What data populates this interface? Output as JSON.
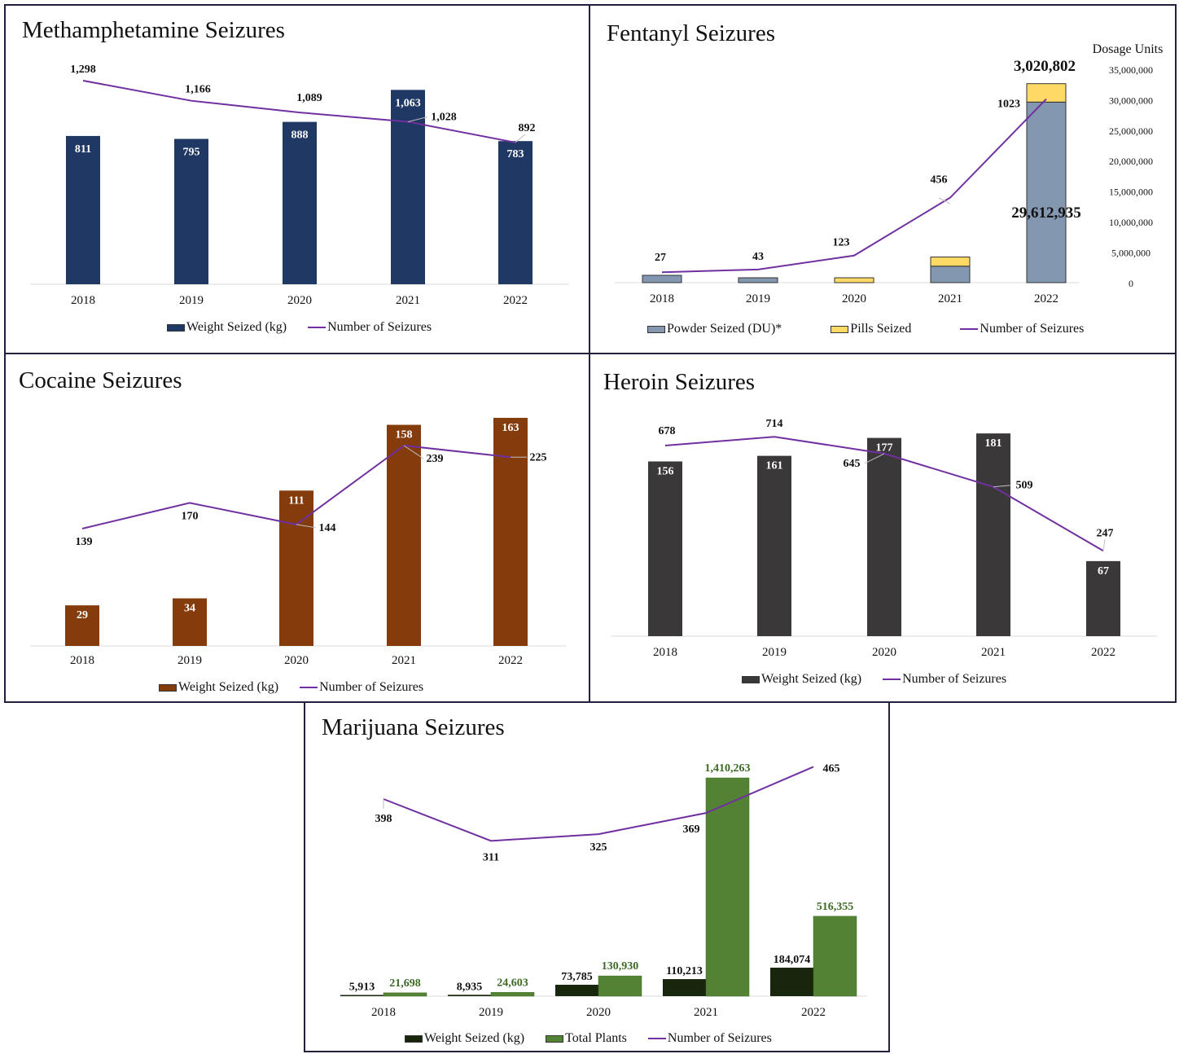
{
  "colors": {
    "line": "#7030a0",
    "meth_bar": "#1f3864",
    "fent_powder": "#8497b0",
    "fent_pills": "#ffd966",
    "cocaine_bar": "#843c0c",
    "heroin_bar": "#3a3838",
    "mj_weight": "#18260e",
    "mj_plants": "#548235",
    "mj_plants_label": "#3d6a25",
    "border": "#22203f"
  },
  "chart_data": [
    {
      "id": "meth",
      "type": "bar",
      "title": "Methamphetamine Seizures",
      "categories": [
        "2018",
        "2019",
        "2020",
        "2021",
        "2022"
      ],
      "series": [
        {
          "name": "Weight Seized (kg)",
          "kind": "bar",
          "values": [
            811,
            795,
            888,
            1063,
            783
          ],
          "labels": [
            "811",
            "795",
            "888",
            "1,063",
            "783"
          ]
        },
        {
          "name": "Number of Seizures",
          "kind": "line",
          "values": [
            1298,
            1166,
            1089,
            1028,
            892
          ],
          "labels": [
            "1,298",
            "1,166",
            "1,089",
            "1,028",
            "892"
          ]
        }
      ],
      "legend": "bottom"
    },
    {
      "id": "fentanyl",
      "type": "bar",
      "title": "Fentanyl Seizures",
      "y2label": "Dosage Units",
      "y2ticks": [
        "35,000,000",
        "30,000,000",
        "25,000,000",
        "20,000,000",
        "15,000,000",
        "10,000,000",
        "5,000,000",
        "0"
      ],
      "y2lim": [
        0,
        35000000
      ],
      "categories": [
        "2018",
        "2019",
        "2020",
        "2021",
        "2022"
      ],
      "series": [
        {
          "name": "Powder Seized (DU)*",
          "kind": "bar-stacked",
          "values": [
            1200000,
            800000,
            0,
            2700000,
            29612935
          ]
        },
        {
          "name": "Pills Seized",
          "kind": "bar-stacked",
          "values": [
            0,
            0,
            800000,
            1500000,
            3020802
          ]
        },
        {
          "name": "Number of Seizures",
          "kind": "line",
          "values": [
            27,
            43,
            123,
            456,
            1023
          ],
          "labels": [
            "27",
            "43",
            "123",
            "456",
            "1023"
          ]
        }
      ],
      "annotations": [
        "3,020,802",
        "29,612,935"
      ],
      "legend": "bottom"
    },
    {
      "id": "cocaine",
      "type": "bar",
      "title": "Cocaine Seizures",
      "categories": [
        "2018",
        "2019",
        "2020",
        "2021",
        "2022"
      ],
      "series": [
        {
          "name": "Weight Seized (kg)",
          "kind": "bar",
          "values": [
            29,
            34,
            111,
            158,
            163
          ],
          "labels": [
            "29",
            "34",
            "111",
            "158",
            "163"
          ]
        },
        {
          "name": "Number of Seizures",
          "kind": "line",
          "values": [
            139,
            170,
            144,
            239,
            225
          ],
          "labels": [
            "139",
            "170",
            "144",
            "239",
            "225"
          ]
        }
      ],
      "legend": "bottom"
    },
    {
      "id": "heroin",
      "type": "bar",
      "title": "Heroin Seizures",
      "categories": [
        "2018",
        "2019",
        "2020",
        "2021",
        "2022"
      ],
      "series": [
        {
          "name": "Weight Seized (kg)",
          "kind": "bar",
          "values": [
            156,
            161,
            177,
            181,
            67
          ],
          "labels": [
            "156",
            "161",
            "177",
            "181",
            "67"
          ]
        },
        {
          "name": "Number of Seizures",
          "kind": "line",
          "values": [
            678,
            714,
            645,
            509,
            247
          ],
          "labels": [
            "678",
            "714",
            "645",
            "509",
            "247"
          ]
        }
      ],
      "legend": "bottom"
    },
    {
      "id": "marijuana",
      "type": "bar",
      "title": "Marijuana Seizures",
      "categories": [
        "2018",
        "2019",
        "2020",
        "2021",
        "2022"
      ],
      "series": [
        {
          "name": "Weight Seized (kg)",
          "kind": "bar",
          "values": [
            5913,
            8935,
            73785,
            110213,
            184074
          ],
          "labels": [
            "5,913",
            "8,935",
            "73,785",
            "110,213",
            "184,074"
          ]
        },
        {
          "name": "Total Plants",
          "kind": "bar",
          "values": [
            21698,
            24603,
            130930,
            1410263,
            516355
          ],
          "labels": [
            "21,698",
            "24,603",
            "130,930",
            "1,410,263",
            "516,355"
          ]
        },
        {
          "name": "Number of Seizures",
          "kind": "line",
          "values": [
            398,
            311,
            325,
            369,
            465
          ],
          "labels": [
            "398",
            "311",
            "325",
            "369",
            "465"
          ]
        }
      ],
      "legend": "bottom"
    }
  ]
}
